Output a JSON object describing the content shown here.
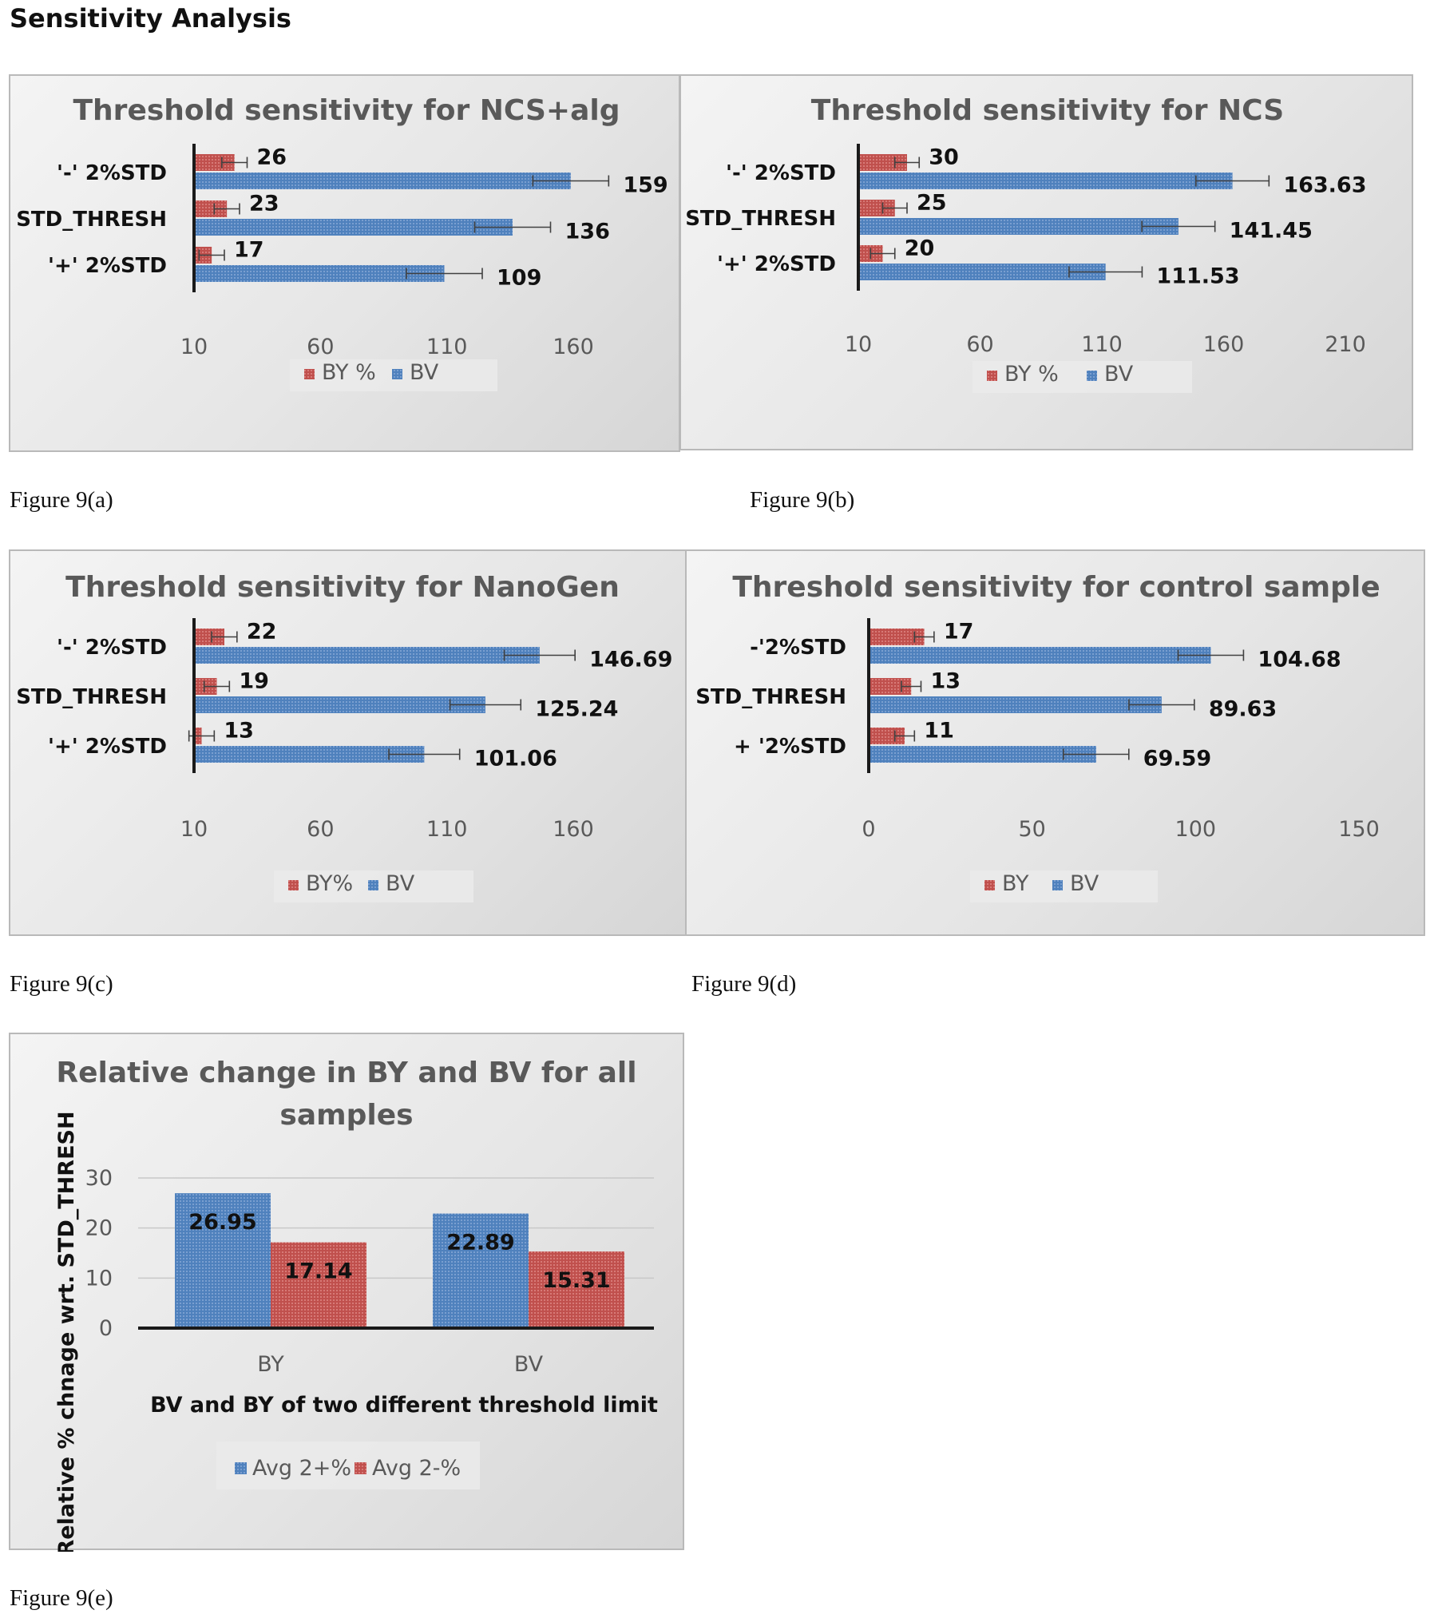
{
  "page": {
    "heading": "Sensitivity Analysis"
  },
  "captions": {
    "a": "Figure 9(a)",
    "b": "Figure 9(b)",
    "c": "Figure 9(c)",
    "d": "Figure 9(d)",
    "e": "Figure 9(e)"
  },
  "colors": {
    "by": "#c0504d",
    "bv": "#4f81bd",
    "error_bar": "#404040"
  },
  "chart_data": [
    {
      "id": "a",
      "type": "bar",
      "orientation": "horizontal",
      "title": "Threshold sensitivity for NCS+alg",
      "categories": [
        "'-' 2%STD",
        "STD_THRESH",
        "'+' 2%STD"
      ],
      "series": [
        {
          "name": "BY %",
          "values": [
            26,
            23,
            17
          ],
          "labels": [
            "26",
            "23",
            "17"
          ],
          "error": [
            5,
            5,
            5
          ]
        },
        {
          "name": "BV",
          "values": [
            159,
            136,
            109
          ],
          "labels": [
            "159",
            "136",
            "109"
          ],
          "error": [
            15,
            15,
            15
          ]
        }
      ],
      "xlim": [
        10,
        160
      ],
      "ticks": [
        10,
        60,
        110,
        160
      ],
      "ticks_text": [
        "10",
        "60",
        "110",
        "160"
      ],
      "legend": [
        "BY %",
        "BV"
      ],
      "legend_position": "bottom"
    },
    {
      "id": "b",
      "type": "bar",
      "orientation": "horizontal",
      "title": "Threshold sensitivity for NCS",
      "categories": [
        "'-' 2%STD",
        "STD_THRESH",
        "'+' 2%STD"
      ],
      "series": [
        {
          "name": "BY %",
          "values": [
            30,
            25,
            20
          ],
          "labels": [
            "30",
            "25",
            "20"
          ],
          "error": [
            5,
            5,
            5
          ]
        },
        {
          "name": "BV",
          "values": [
            163.63,
            141.45,
            111.53
          ],
          "labels": [
            "163.63",
            "141.45",
            "111.53"
          ],
          "error": [
            15,
            15,
            15
          ]
        }
      ],
      "xlim": [
        10,
        210
      ],
      "ticks": [
        10,
        60,
        110,
        160,
        210
      ],
      "ticks_text": [
        "10",
        "60",
        "110",
        "160",
        "210"
      ],
      "legend": [
        "BY %",
        "BV"
      ],
      "legend_position": "bottom"
    },
    {
      "id": "c",
      "type": "bar",
      "orientation": "horizontal",
      "title": "Threshold sensitivity for NanoGen",
      "categories": [
        "'-' 2%STD",
        "STD_THRESH",
        "'+' 2%STD"
      ],
      "series": [
        {
          "name": "BY%",
          "values": [
            22,
            19,
            13
          ],
          "labels": [
            "22",
            "19",
            "13"
          ],
          "error": [
            5,
            5,
            5
          ]
        },
        {
          "name": "BV",
          "values": [
            146.69,
            125.24,
            101.06
          ],
          "labels": [
            "146.69",
            "125.24",
            "101.06"
          ],
          "error": [
            14,
            14,
            14
          ]
        }
      ],
      "xlim": [
        10,
        160
      ],
      "ticks": [
        10,
        60,
        110,
        160
      ],
      "ticks_text": [
        "10",
        "60",
        "110",
        "160"
      ],
      "legend": [
        "BY%",
        "BV"
      ],
      "legend_position": "bottom"
    },
    {
      "id": "d",
      "type": "bar",
      "orientation": "horizontal",
      "title": "Threshold sensitivity for control sample",
      "categories": [
        "-'2%STD",
        "STD_THRESH",
        "+ '2%STD"
      ],
      "series": [
        {
          "name": "BY",
          "values": [
            17,
            13,
            11
          ],
          "labels": [
            "17",
            "13",
            "11"
          ],
          "error": [
            3,
            3,
            3
          ]
        },
        {
          "name": "BV",
          "values": [
            104.68,
            89.63,
            69.59
          ],
          "labels": [
            "104.68",
            "89.63",
            "69.59"
          ],
          "error": [
            10,
            10,
            10
          ]
        }
      ],
      "xlim": [
        0,
        150
      ],
      "ticks": [
        0,
        50,
        100,
        150
      ],
      "ticks_text": [
        "0",
        "50",
        "100",
        "150"
      ],
      "legend": [
        "BY",
        "BV"
      ],
      "legend_position": "bottom"
    },
    {
      "id": "e",
      "type": "bar",
      "orientation": "vertical",
      "title": "Relative change in BY and BV for all samples",
      "title_lines": [
        "Relative change in BY and BV for all",
        "samples"
      ],
      "categories": [
        "BY",
        "BV"
      ],
      "series": [
        {
          "name": "Avg 2+%",
          "values": [
            26.95,
            22.89
          ],
          "labels": [
            "26.95",
            "22.89"
          ]
        },
        {
          "name": "Avg 2-%",
          "values": [
            17.14,
            15.31
          ],
          "labels": [
            "17.14",
            "15.31"
          ]
        }
      ],
      "ylim": [
        0,
        30
      ],
      "ticks": [
        0,
        10,
        20,
        30
      ],
      "ticks_text": [
        "0",
        "10",
        "20",
        "30"
      ],
      "xlabel": "BV and BY of two different threshold limit",
      "ylabel": "Relative % chnage wrt. STD_THRESH",
      "legend": [
        "Avg 2+%",
        "Avg 2-%"
      ],
      "legend_position": "bottom",
      "grid": true
    }
  ]
}
